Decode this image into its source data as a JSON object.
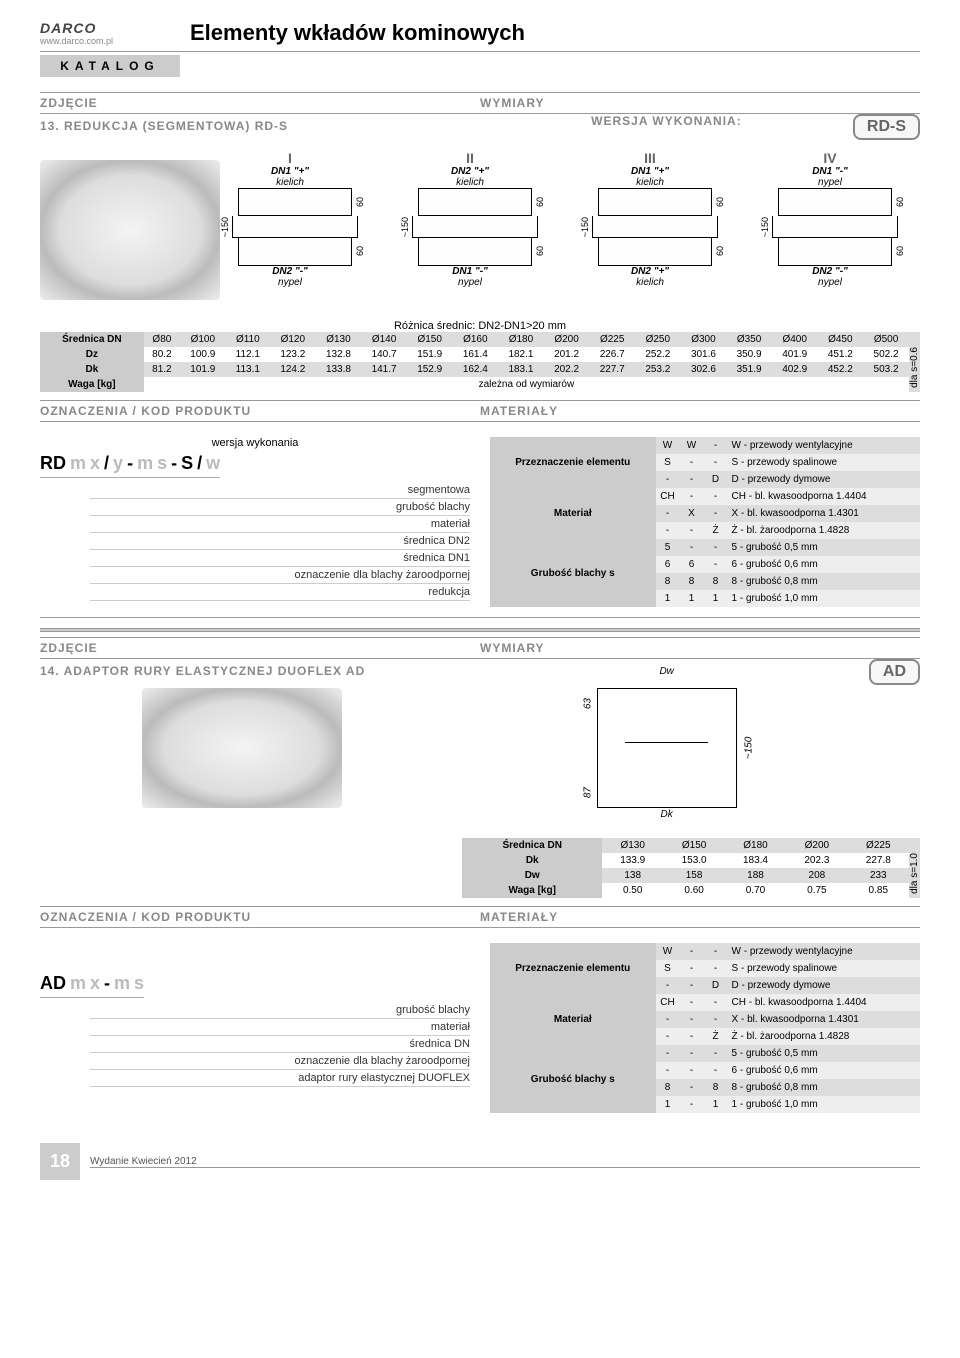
{
  "header": {
    "brand": "DARCO",
    "url": "www.darco.com.pl",
    "title": "Elementy wkładów kominowych",
    "katalog": "KATALOG"
  },
  "sec1": {
    "zdjecie": "ZDJĘCIE",
    "wymiary": "WYMIARY",
    "subtitle": "13. REDUKCJA (SEGMENTOWA) RD-S",
    "wersja_title": "WERSJA WYKONANIA:",
    "badge": "RD-S",
    "variants": [
      {
        "roman": "I",
        "top": "DN1 \"+\"",
        "top2": "kielich",
        "bot": "DN2 \"-\"",
        "bot2": "nypel"
      },
      {
        "roman": "II",
        "top": "DN2 \"+\"",
        "top2": "kielich",
        "bot": "DN1 \"-\"",
        "bot2": "nypel"
      },
      {
        "roman": "III",
        "top": "DN1 \"+\"",
        "top2": "kielich",
        "bot": "DN2 \"+\"",
        "bot2": "kielich"
      },
      {
        "roman": "IV",
        "top": "DN1 \"-\"",
        "top2": "nypel",
        "bot": "DN2 \"-\"",
        "bot2": "nypel"
      }
    ],
    "side_dims": {
      "h": "~150",
      "seg": "60"
    },
    "diff_note": "Różnica średnic: DN2-DN1>20 mm",
    "table": {
      "rowlabels": [
        "Średnica DN",
        "Dz",
        "Dk",
        "Waga [kg]"
      ],
      "cols": [
        "Ø80",
        "Ø100",
        "Ø110",
        "Ø120",
        "Ø130",
        "Ø140",
        "Ø150",
        "Ø160",
        "Ø180",
        "Ø200",
        "Ø225",
        "Ø250",
        "Ø300",
        "Ø350",
        "Ø400",
        "Ø450",
        "Ø500"
      ],
      "dz": [
        "80.2",
        "100.9",
        "112.1",
        "123.2",
        "132.8",
        "140.7",
        "151.9",
        "161.4",
        "182.1",
        "201.2",
        "226.7",
        "252.2",
        "301.6",
        "350.9",
        "401.9",
        "451.2",
        "502.2"
      ],
      "dk": [
        "81.2",
        "101.9",
        "113.1",
        "124.2",
        "133.8",
        "141.7",
        "152.9",
        "162.4",
        "183.1",
        "202.2",
        "227.7",
        "253.2",
        "302.6",
        "351.9",
        "402.9",
        "452.2",
        "503.2"
      ],
      "waga": "zależna od wymiarów",
      "side": "dla s=0.6"
    },
    "oznaczenia_hdr": "OZNACZENIA / KOD PRODUKTU",
    "materialy_hdr": "MATERIAŁY",
    "wersja_wyk": "wersja wykonania",
    "code_parts": [
      "RD",
      "m",
      "x",
      "/",
      "y",
      "-",
      "m",
      "s",
      "-",
      "S",
      "/",
      "w"
    ],
    "callouts": [
      "segmentowa",
      "grubość blachy",
      "materiał",
      "średnica DN2",
      "średnica DN1",
      "oznaczenie dla  blachy żaroodpornej",
      "redukcja"
    ],
    "mat_table": {
      "groups": [
        {
          "name": "Przeznaczenie elementu",
          "rows": [
            [
              "W",
              "W",
              "-",
              "W - przewody wentylacyjne"
            ],
            [
              "S",
              "-",
              "-",
              "S  - przewody spalinowe"
            ],
            [
              "-",
              "-",
              "D",
              "D  - przewody dymowe"
            ]
          ]
        },
        {
          "name": "Materiał",
          "rows": [
            [
              "CH",
              "-",
              "-",
              "CH - bl. kwasoodporna  1.4404"
            ],
            [
              "-",
              "X",
              "-",
              "X   - bl. kwasoodporna  1.4301"
            ],
            [
              "-",
              "-",
              "Ż",
              "Ż   - bl. żaroodporna    1.4828"
            ]
          ]
        },
        {
          "name": "Grubość blachy s",
          "rows": [
            [
              "5",
              "-",
              "-",
              "5 - grubość 0,5 mm"
            ],
            [
              "6",
              "6",
              "-",
              "6 - grubość 0,6 mm"
            ],
            [
              "8",
              "8",
              "8",
              "8 - grubość 0,8 mm"
            ],
            [
              "1",
              "1",
              "1",
              "1  - grubość 1,0 mm"
            ]
          ]
        }
      ]
    }
  },
  "sec2": {
    "zdjecie": "ZDJĘCIE",
    "wymiary": "WYMIARY",
    "subtitle": "14. ADAPTOR RURY ELASTYCZNEJ DUOFLEX AD",
    "badge": "AD",
    "draw_labels": {
      "dw": "Dw",
      "dk": "Dk",
      "h1": "63",
      "h2": "87",
      "h": "~150"
    },
    "table": {
      "rowlabels": [
        "Średnica DN",
        "Dk",
        "Dw",
        "Waga [kg]"
      ],
      "cols": [
        "Ø130",
        "Ø150",
        "Ø180",
        "Ø200",
        "Ø225"
      ],
      "dk": [
        "133.9",
        "153.0",
        "183.4",
        "202.3",
        "227.8"
      ],
      "dw": [
        "138",
        "158",
        "188",
        "208",
        "233"
      ],
      "waga": [
        "0.50",
        "0.60",
        "0.70",
        "0.75",
        "0.85"
      ],
      "side": "dla s=1.0"
    },
    "oznaczenia_hdr": "OZNACZENIA / KOD PRODUKTU",
    "materialy_hdr": "MATERIAŁY",
    "code_parts": [
      "AD",
      "m",
      "x",
      "-",
      "m",
      "s"
    ],
    "callouts": [
      "grubość blachy",
      "materiał",
      "średnica DN",
      "oznaczenie dla blachy żaroodpornej",
      "adaptor rury elastycznej DUOFLEX"
    ],
    "mat_table": {
      "groups": [
        {
          "name": "Przeznaczenie elementu",
          "rows": [
            [
              "W",
              "-",
              "-",
              "W - przewody wentylacyjne"
            ],
            [
              "S",
              "-",
              "-",
              "S  - przewody spalinowe"
            ],
            [
              "-",
              "-",
              "D",
              "D  - przewody dymowe"
            ]
          ]
        },
        {
          "name": "Materiał",
          "rows": [
            [
              "CH",
              "-",
              "-",
              "CH - bl. kwasoodporna  1.4404"
            ],
            [
              "-",
              "-",
              "-",
              "X   - bl. kwasoodporna  1.4301"
            ],
            [
              "-",
              "-",
              "Ż",
              "Ż   - bl. żaroodporna    1.4828"
            ]
          ]
        },
        {
          "name": "Grubość blachy s",
          "rows": [
            [
              "-",
              "-",
              "-",
              "5 - grubość 0,5 mm"
            ],
            [
              "-",
              "-",
              "-",
              "6 - grubość 0,6 mm"
            ],
            [
              "8",
              "-",
              "8",
              "8 - grubość 0,8 mm"
            ],
            [
              "1",
              "-",
              "1",
              "1  - grubość 1,0 mm"
            ]
          ]
        }
      ]
    }
  },
  "footer": {
    "page": "18",
    "pub": "Wydanie Kwiecień 2012"
  }
}
